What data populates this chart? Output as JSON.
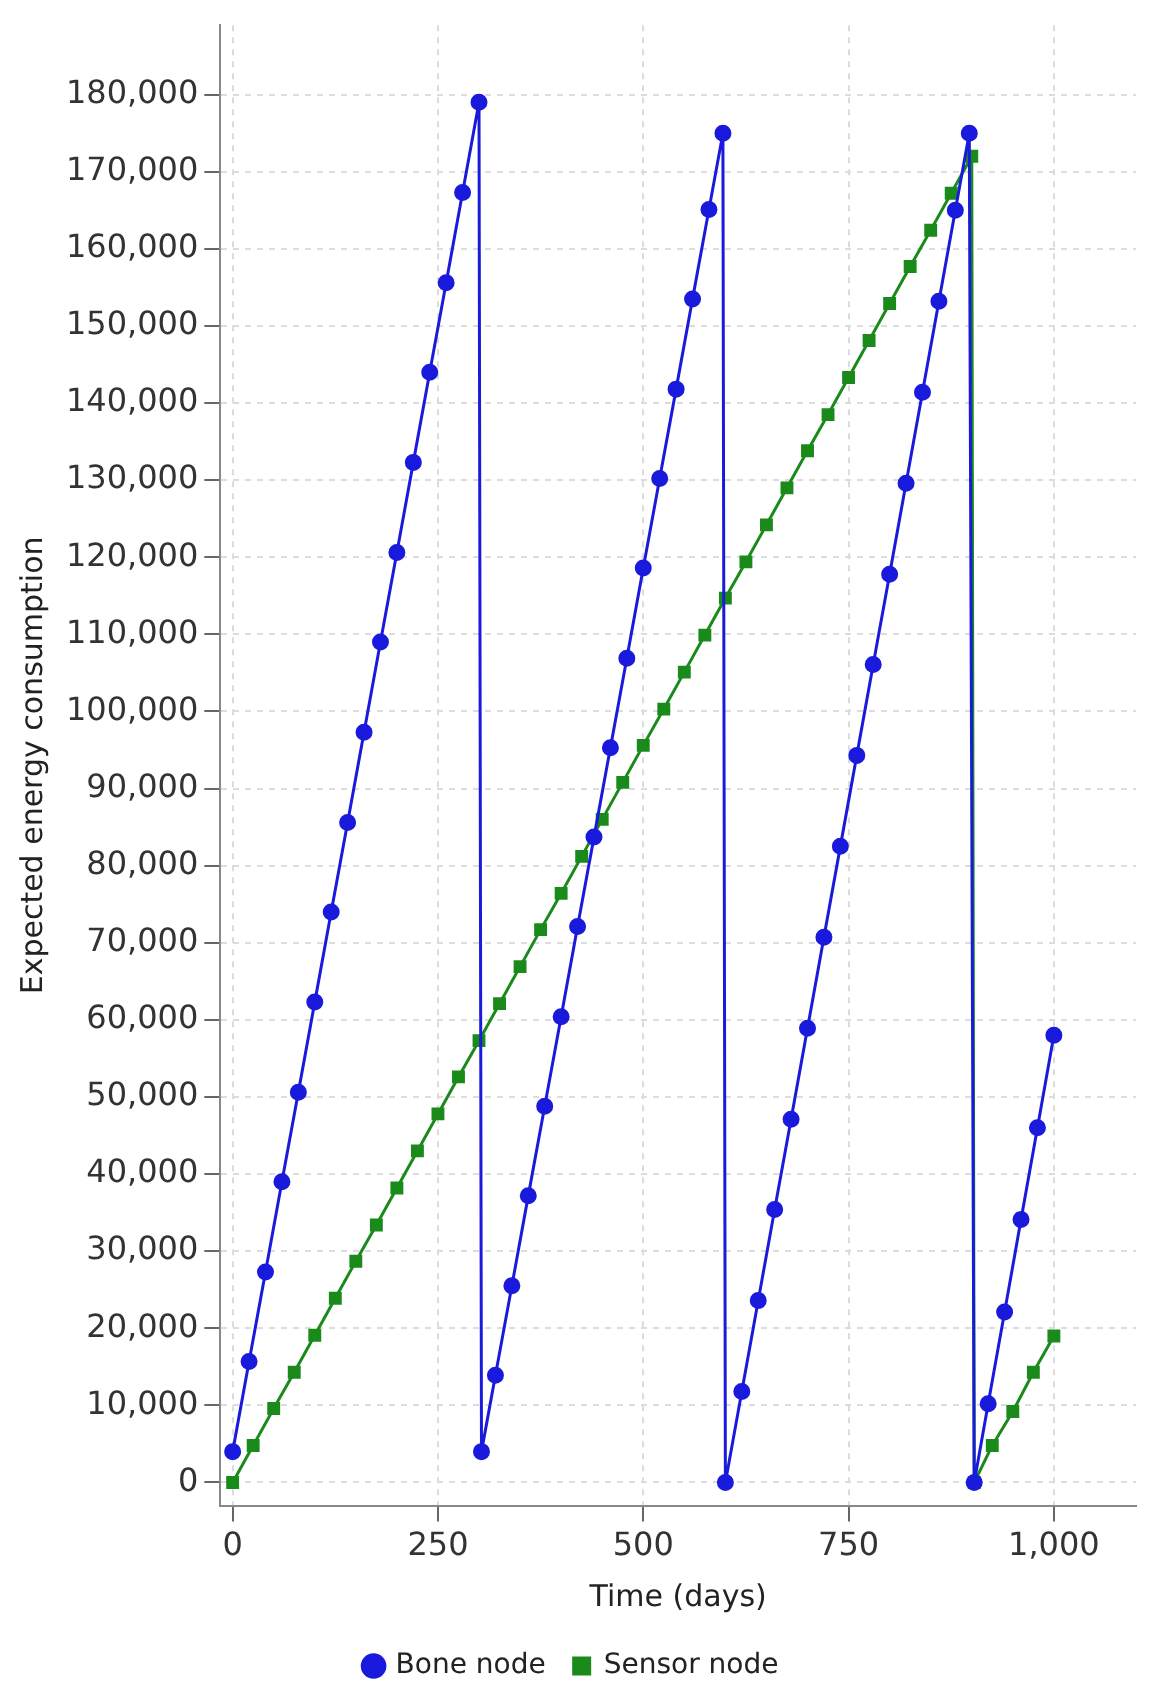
{
  "chart_data": {
    "type": "line",
    "xlabel": "Time (days)",
    "ylabel": "Expected energy consumption",
    "xlim": [
      -15,
      1100
    ],
    "ylim": [
      -3000,
      189000
    ],
    "xticks": [
      0,
      250,
      500,
      750,
      {
        "value": 1000,
        "label": "1,000"
      }
    ],
    "yticks": [
      0,
      {
        "value": 10000,
        "label": "10,000"
      },
      {
        "value": 20000,
        "label": "20,000"
      },
      {
        "value": 30000,
        "label": "30,000"
      },
      {
        "value": 40000,
        "label": "40,000"
      },
      {
        "value": 50000,
        "label": "50,000"
      },
      {
        "value": 60000,
        "label": "60,000"
      },
      {
        "value": 70000,
        "label": "70,000"
      },
      {
        "value": 80000,
        "label": "80,000"
      },
      {
        "value": 90000,
        "label": "90,000"
      },
      {
        "value": 100000,
        "label": "100,000"
      },
      {
        "value": 110000,
        "label": "110,000"
      },
      {
        "value": 120000,
        "label": "120,000"
      },
      {
        "value": 130000,
        "label": "130,000"
      },
      {
        "value": 140000,
        "label": "140,000"
      },
      {
        "value": 150000,
        "label": "150,000"
      },
      {
        "value": 160000,
        "label": "160,000"
      },
      {
        "value": 170000,
        "label": "170,000"
      },
      {
        "value": 180000,
        "label": "180,000"
      }
    ],
    "grid": true,
    "legend": "bottom",
    "series": [
      {
        "name": "Bone node",
        "color": "#1a1adc",
        "marker": "circle",
        "x": [
          0,
          20,
          40,
          60,
          80,
          100,
          120,
          140,
          160,
          180,
          200,
          220,
          240,
          260,
          280,
          300,
          303,
          320,
          340,
          360,
          380,
          400,
          420,
          440,
          460,
          480,
          500,
          520,
          540,
          560,
          580,
          597,
          600,
          620,
          640,
          660,
          680,
          700,
          720,
          740,
          760,
          780,
          800,
          820,
          840,
          860,
          880,
          897,
          903,
          920,
          940,
          960,
          980,
          1000
        ],
        "values": [
          4000,
          15700,
          27300,
          39000,
          50600,
          62300,
          74000,
          85600,
          97300,
          109000,
          120600,
          132300,
          144000,
          155600,
          167300,
          179000,
          4000,
          13900,
          25500,
          37200,
          48800,
          60400,
          72100,
          83700,
          95300,
          106900,
          118600,
          130200,
          141800,
          153500,
          165100,
          175000,
          0,
          11800,
          23600,
          35400,
          47100,
          58900,
          70700,
          82500,
          94300,
          106100,
          117800,
          129600,
          141400,
          153200,
          165000,
          175000,
          0,
          10200,
          22100,
          34100,
          46000,
          58000
        ]
      },
      {
        "name": "Sensor node",
        "color": "#1a8a1a",
        "marker": "square",
        "x": [
          0,
          25,
          50,
          75,
          100,
          125,
          150,
          175,
          200,
          225,
          250,
          275,
          300,
          325,
          350,
          375,
          400,
          425,
          450,
          475,
          500,
          525,
          550,
          575,
          600,
          625,
          650,
          675,
          700,
          725,
          750,
          775,
          800,
          825,
          850,
          875,
          900,
          903,
          925,
          950,
          975,
          1000
        ],
        "values": [
          0,
          4800,
          9600,
          14300,
          19100,
          23900,
          28700,
          33400,
          38200,
          43000,
          47800,
          52600,
          57300,
          62100,
          66900,
          71700,
          76400,
          81200,
          86000,
          90800,
          95600,
          100300,
          105100,
          109900,
          114700,
          119400,
          124200,
          129000,
          133800,
          138500,
          143300,
          148100,
          152900,
          157700,
          162400,
          167200,
          172000,
          0,
          4800,
          9200,
          14300,
          19000
        ]
      }
    ]
  }
}
